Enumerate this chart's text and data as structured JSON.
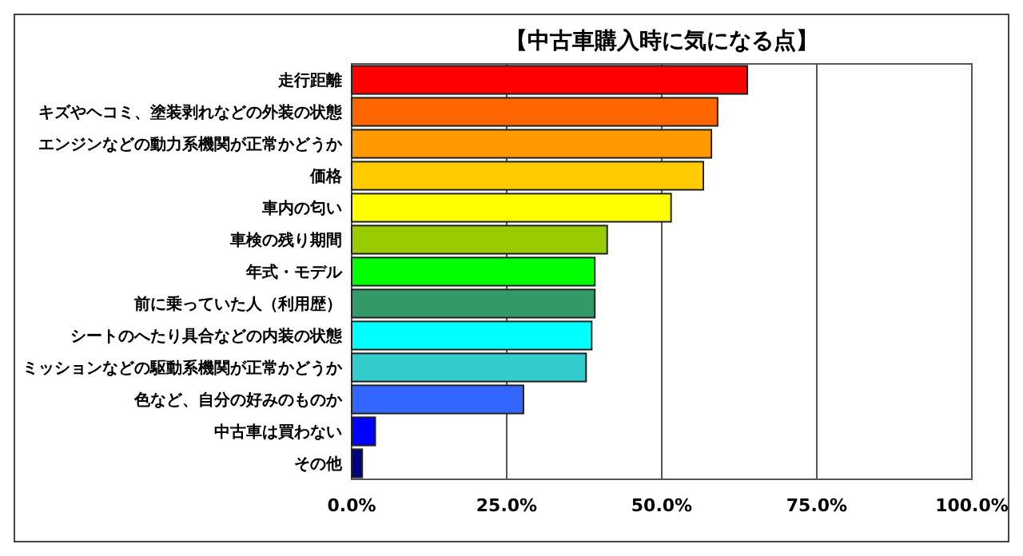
{
  "chart_data": {
    "type": "bar",
    "orientation": "horizontal",
    "title": "【中古車購入時に気になる点】",
    "categories": [
      "走行距離",
      "キズやヘコミ、塗装剥れなどの外装の状態",
      "エンジンなどの動力系機関が正常かどうか",
      "価格",
      "車内の匂い",
      "車検の残り期間",
      "年式・モデル",
      "前に乗っていた人（利用歴）",
      "シートのへたり具合などの内装の状態",
      "ミッションなどの駆動系機関が正常かどうか",
      "色など、自分の好みのものか",
      "中古車は買わない",
      "その他"
    ],
    "values": [
      63.8,
      59.0,
      58.0,
      56.7,
      51.5,
      41.2,
      39.2,
      39.2,
      38.7,
      37.8,
      27.7,
      3.8,
      1.7
    ],
    "colors": [
      "#ff0000",
      "#ff6600",
      "#ff9900",
      "#ffcc00",
      "#ffff00",
      "#99cc00",
      "#00ff00",
      "#339966",
      "#00ffff",
      "#33cccc",
      "#3366ff",
      "#0000ff",
      "#000080"
    ],
    "xlim": [
      0,
      100
    ],
    "xticks": [
      {
        "value": 0,
        "label": "0.0%"
      },
      {
        "value": 25,
        "label": "25.0%"
      },
      {
        "value": 50,
        "label": "50.0%"
      },
      {
        "value": 75,
        "label": "75.0%"
      },
      {
        "value": 100,
        "label": "100.0%"
      }
    ],
    "grid": "x"
  }
}
